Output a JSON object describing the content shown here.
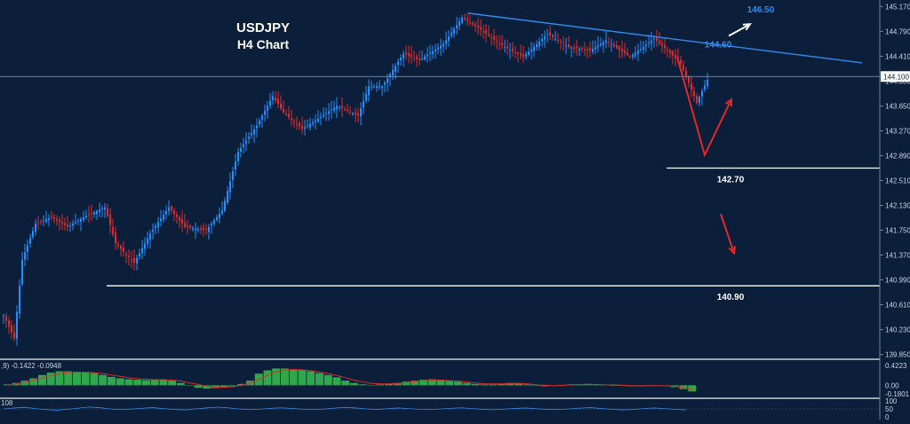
{
  "chart_data": {
    "type": "candlestick",
    "symbol": "USDJPY",
    "timeframe_label": "H4 Chart",
    "y_ticks": [
      "145.170",
      "144.790",
      "144.410",
      "144.030",
      "143.650",
      "143.270",
      "142.890",
      "142.510",
      "142.130",
      "141.750",
      "141.370",
      "140.990",
      "140.610",
      "140.230",
      "139.850"
    ],
    "ylim": [
      139.79,
      145.27
    ],
    "current_price_label": "144.100",
    "current_price": 144.1,
    "levels": [
      {
        "label": "142.70",
        "value": 142.7
      },
      {
        "label": "140.90",
        "value": 140.9
      }
    ],
    "targets": [
      {
        "label": "144.60",
        "value": 144.6
      },
      {
        "label": "146.50",
        "value": 146.5
      }
    ],
    "trendline": {
      "from_bar": 174,
      "from_value": 145.07,
      "to_bar": 322,
      "to_value": 144.31
    },
    "projection_arrows": [
      {
        "role": "red-down-then-up",
        "points": [
          [
            253,
            144.35
          ],
          [
            263,
            142.9
          ],
          [
            273,
            143.75
          ]
        ]
      },
      {
        "role": "red-down",
        "points": [
          [
            269,
            142.0
          ],
          [
            274,
            141.4
          ]
        ]
      },
      {
        "role": "white-up",
        "points": [
          [
            272,
            144.72
          ],
          [
            280,
            144.9
          ]
        ]
      }
    ],
    "macd": {
      "params_label": ",9) -0.1422 -0.0948",
      "ticks": [
        "0.4223",
        "0.00",
        "-0.1801"
      ],
      "ylim": [
        -0.22,
        0.5
      ],
      "histogram": [
        0.02,
        0.05,
        0.1,
        0.15,
        0.22,
        0.27,
        0.3,
        0.3,
        0.29,
        0.28,
        0.26,
        0.22,
        0.18,
        0.15,
        0.13,
        0.12,
        0.11,
        0.12,
        0.12,
        0.1,
        0.05,
        0.0,
        -0.05,
        -0.07,
        -0.06,
        -0.04,
        -0.02,
        0.03,
        0.1,
        0.25,
        0.32,
        0.36,
        0.36,
        0.34,
        0.33,
        0.3,
        0.26,
        0.22,
        0.17,
        0.1,
        0.05,
        0.02,
        0.01,
        0.02,
        0.03,
        0.05,
        0.08,
        0.1,
        0.12,
        0.13,
        0.12,
        0.1,
        0.08,
        0.05,
        0.03,
        0.02,
        0.02,
        0.03,
        0.05,
        0.04,
        0.02,
        0.0,
        -0.02,
        -0.01,
        0.01,
        0.02,
        0.02,
        0.03,
        0.02,
        0.01,
        0.0,
        -0.01,
        -0.02,
        -0.02,
        -0.01,
        0.0,
        -0.01,
        -0.04,
        -0.08,
        -0.13
      ],
      "signal": [
        0.0,
        0.03,
        0.07,
        0.11,
        0.16,
        0.21,
        0.25,
        0.27,
        0.28,
        0.28,
        0.27,
        0.25,
        0.22,
        0.19,
        0.16,
        0.14,
        0.13,
        0.12,
        0.12,
        0.11,
        0.09,
        0.05,
        0.02,
        -0.02,
        -0.04,
        -0.04,
        -0.03,
        0.0,
        0.05,
        0.13,
        0.22,
        0.29,
        0.33,
        0.34,
        0.33,
        0.31,
        0.28,
        0.25,
        0.21,
        0.16,
        0.11,
        0.07,
        0.04,
        0.03,
        0.03,
        0.04,
        0.06,
        0.08,
        0.1,
        0.11,
        0.11,
        0.1,
        0.09,
        0.07,
        0.05,
        0.03,
        0.03,
        0.03,
        0.04,
        0.04,
        0.03,
        0.01,
        0.0,
        -0.01,
        0.0,
        0.01,
        0.02,
        0.02,
        0.02,
        0.01,
        0.01,
        0.0,
        -0.01,
        -0.01,
        -0.01,
        -0.01,
        -0.01,
        -0.02,
        -0.05,
        -0.09
      ]
    },
    "oscillator": {
      "params_label": "108",
      "ticks": [
        "100",
        "50",
        "0"
      ],
      "ylim": [
        0,
        100
      ],
      "values": [
        50,
        56,
        60,
        52,
        46,
        42,
        48,
        55,
        62,
        58,
        50,
        45,
        49,
        54,
        58,
        52,
        47,
        44,
        50,
        56,
        61,
        57,
        50,
        46,
        48,
        53,
        57,
        53,
        48,
        45,
        49,
        55,
        60,
        56,
        50,
        47,
        51,
        56,
        52,
        48,
        46,
        50,
        54,
        57,
        52,
        47,
        45,
        49,
        53,
        56,
        51,
        47,
        46,
        50,
        55,
        58,
        53,
        48,
        44,
        47,
        52,
        56,
        52,
        47,
        44
      ]
    }
  }
}
